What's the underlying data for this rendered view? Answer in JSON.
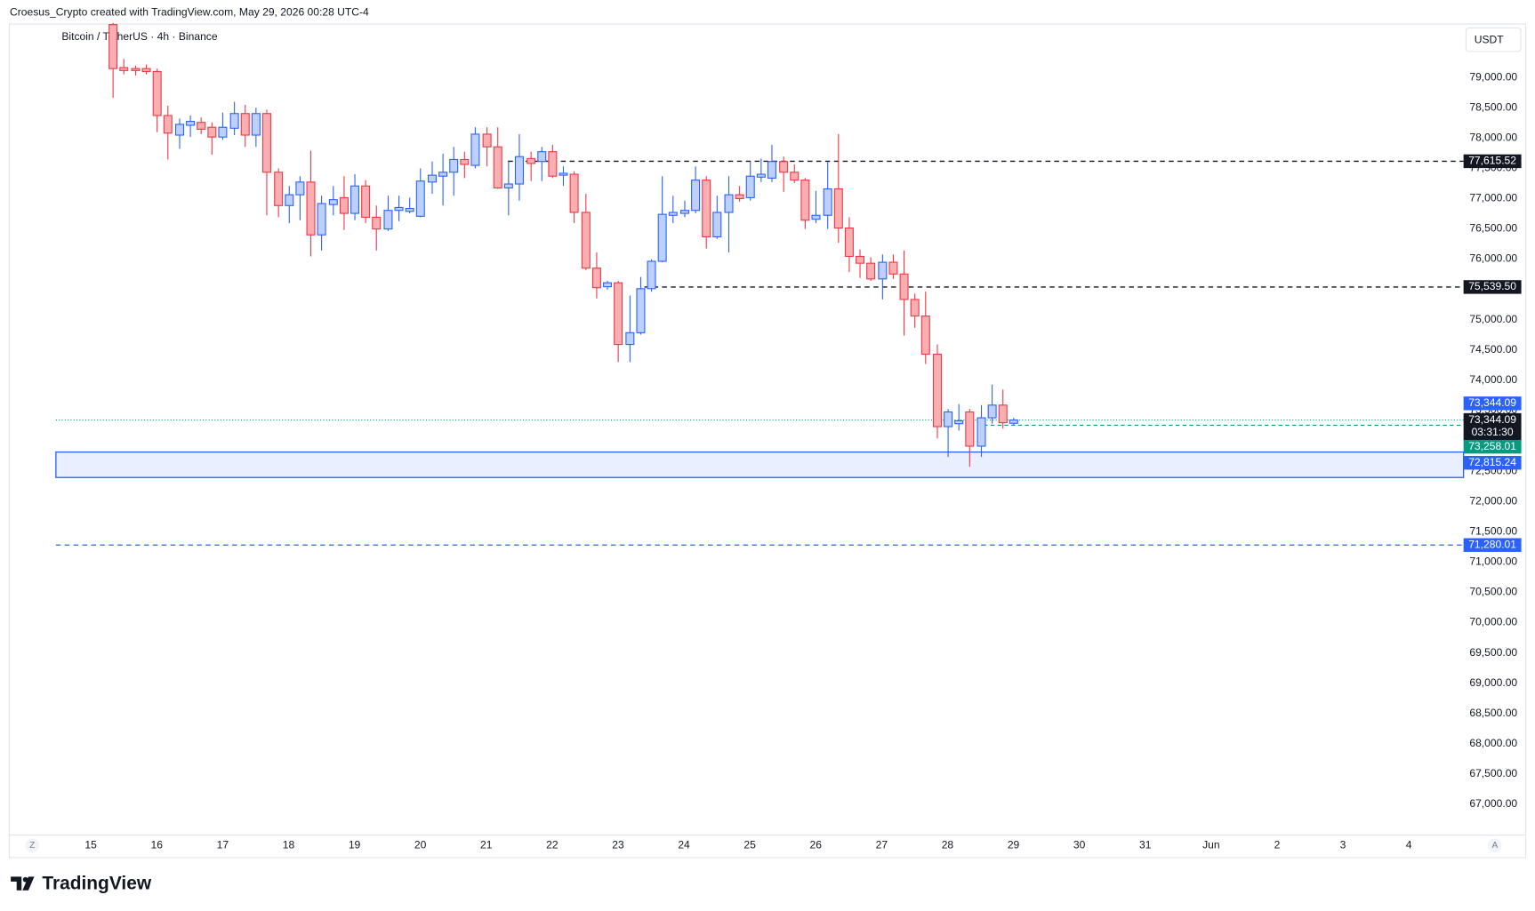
{
  "header": "Croesus_Crypto created with TradingView.com, May 29, 2026 00:28 UTC-4",
  "logo": "TradingView",
  "chart_data": {
    "type": "candlestick",
    "title": "Bitcoin / TetherUS · 4h · Binance",
    "currency": "USDT",
    "buttons": [
      "Z",
      "A"
    ],
    "up_color": "#2962ff",
    "down_color": "#f23645",
    "x": [
      15.333,
      15.5,
      15.667,
      15.833,
      16,
      16.167,
      16.333,
      16.5,
      16.667,
      16.833,
      17,
      17.167,
      17.333,
      17.5,
      17.667,
      17.833,
      18,
      18.167,
      18.333,
      18.5,
      18.667,
      18.833,
      19,
      19.167,
      19.333,
      19.5,
      19.667,
      19.833,
      20,
      20.167,
      20.333,
      20.5,
      20.667,
      20.833,
      21,
      21.167,
      21.333,
      21.5,
      21.667,
      21.833,
      22,
      22.167,
      22.333,
      22.5,
      22.667,
      22.833,
      23,
      23.167,
      23.333,
      23.5,
      23.667,
      23.833,
      24,
      24.167,
      24.333,
      24.5,
      24.667,
      24.833,
      25,
      25.167,
      25.333,
      25.5,
      25.667,
      25.833,
      26,
      26.167,
      26.333,
      26.5,
      26.667,
      26.833,
      27,
      27.167,
      27.333,
      27.5,
      27.667,
      27.833,
      28,
      28.167,
      28.333,
      28.5,
      28.667,
      28.833,
      29
    ],
    "open": [
      79872,
      79162,
      79145,
      79145,
      79097,
      78370,
      78047,
      78209,
      78257,
      78176,
      78015,
      78160,
      78403,
      78047,
      78403,
      77434,
      76884,
      77062,
      77272,
      76400,
      76901,
      77014,
      76755,
      77207,
      76691,
      76497,
      76804,
      76788,
      76707,
      77272,
      77369,
      77434,
      77644,
      77547,
      78063,
      77853,
      77175,
      77240,
      77660,
      77611,
      77773,
      77385,
      77401,
      76771,
      75851,
      75544,
      75609,
      74591,
      74785,
      75512,
      75964,
      76723,
      76755,
      76804,
      77304,
      76368,
      76771,
      77062,
      77014,
      77353,
      77337,
      77611,
      77434,
      77304,
      76658,
      76723,
      77159,
      76513,
      76045,
      75932,
      75673,
      75948,
      75754,
      75334,
      75060,
      74430,
      73235,
      73283,
      73477,
      72912,
      73380,
      73590,
      73290
    ],
    "high": [
      79900,
      79307,
      79194,
      79210,
      79145,
      78532,
      78322,
      78370,
      78338,
      78257,
      78419,
      78596,
      78548,
      78499,
      78467,
      77498,
      77207,
      77369,
      77789,
      77046,
      77207,
      77369,
      77401,
      77304,
      76884,
      77046,
      77046,
      77014,
      77498,
      77611,
      77740,
      77853,
      77773,
      78176,
      78176,
      78176,
      77611,
      78063,
      77773,
      77853,
      77886,
      77530,
      77450,
      77078,
      76109,
      75641,
      75641,
      75399,
      75706,
      75996,
      77369,
      77046,
      76965,
      77530,
      77369,
      77046,
      77369,
      77207,
      77611,
      77660,
      77886,
      77692,
      77563,
      77337,
      77127,
      77611,
      78063,
      76691,
      76158,
      76029,
      76077,
      76077,
      76142,
      75431,
      75463,
      74591,
      73525,
      73606,
      73525,
      73590,
      73929,
      73848,
      73380
    ],
    "low": [
      78661,
      79049,
      79032,
      79049,
      78096,
      77644,
      77821,
      78015,
      78063,
      77724,
      77967,
      78047,
      77853,
      77853,
      76723,
      76691,
      76594,
      76642,
      76045,
      76142,
      76723,
      76481,
      76642,
      76594,
      76142,
      76465,
      76626,
      76755,
      76691,
      77078,
      76884,
      77046,
      77337,
      77498,
      77530,
      77159,
      76723,
      76965,
      77288,
      77288,
      77337,
      77207,
      76594,
      75819,
      75350,
      75496,
      74300,
      74300,
      74753,
      75463,
      75948,
      76594,
      76691,
      76755,
      76174,
      76335,
      76109,
      76949,
      76965,
      77272,
      77272,
      77111,
      77256,
      76497,
      76594,
      76497,
      76271,
      75786,
      75689,
      75641,
      75334,
      75673,
      74737,
      74866,
      74268,
      73041,
      72734,
      73170,
      72572,
      72734,
      73283,
      73202,
      73250
    ],
    "close": [
      79145,
      79113,
      79113,
      79097,
      78370,
      78080,
      78225,
      78273,
      78144,
      78015,
      78176,
      78403,
      78047,
      78403,
      77434,
      76884,
      77062,
      77272,
      76400,
      76917,
      76981,
      76755,
      77207,
      76691,
      76497,
      76804,
      76852,
      76836,
      77288,
      77385,
      77434,
      77644,
      77563,
      78063,
      77853,
      77175,
      77240,
      77692,
      77579,
      77773,
      77369,
      77417,
      76771,
      75851,
      75528,
      75609,
      74591,
      74785,
      75512,
      75964,
      76739,
      76771,
      76804,
      77304,
      76368,
      76771,
      77062,
      76998,
      77369,
      77401,
      77611,
      77434,
      77304,
      76642,
      76723,
      77159,
      76513,
      76045,
      75932,
      75673,
      75948,
      75754,
      75334,
      75060,
      74430,
      73235,
      73477,
      73331,
      72912,
      73380,
      73590,
      73299,
      73344.09
    ],
    "xlim": [
      13.77,
      35.83
    ],
    "xticks": [
      15,
      16,
      17,
      18,
      19,
      20,
      21,
      22,
      23,
      24,
      25,
      26,
      27,
      28,
      29,
      30,
      31,
      {
        "value": 32,
        "label": "Jun"
      },
      {
        "value": 33,
        "label": "2"
      },
      {
        "value": 34,
        "label": "3"
      },
      {
        "value": 35,
        "label": "4"
      }
    ],
    "ylim": [
      66500,
      79872
    ],
    "yticks": [
      {
        "value": 67000,
        "label": "67,000.00"
      },
      {
        "value": 67500,
        "label": "67,500.00"
      },
      {
        "value": 68000,
        "label": "68,000.00"
      },
      {
        "value": 68500,
        "label": "68,500.00"
      },
      {
        "value": 69000,
        "label": "69,000.00"
      },
      {
        "value": 69500,
        "label": "69,500.00"
      },
      {
        "value": 70000,
        "label": "70,000.00"
      },
      {
        "value": 70500,
        "label": "70,500.00"
      },
      {
        "value": 71000,
        "label": "71,000.00"
      },
      {
        "value": 71500,
        "label": "71,500.00"
      },
      {
        "value": 72000,
        "label": "72,000.00"
      },
      {
        "value": 72500,
        "label": "72,500.00"
      },
      {
        "value": 73000,
        "label": "73,000.00"
      },
      {
        "value": 73500,
        "label": "73,500.00"
      },
      {
        "value": 74000,
        "label": "74,000.00"
      },
      {
        "value": 74500,
        "label": "74,500.00"
      },
      {
        "value": 75000,
        "label": "75,000.00"
      },
      {
        "value": 75500,
        "label": "75,500.00"
      },
      {
        "value": 76000,
        "label": "76,000.00"
      },
      {
        "value": 76500,
        "label": "76,500.00"
      },
      {
        "value": 77000,
        "label": "77,000.00"
      },
      {
        "value": 77500,
        "label": "77,500.00"
      },
      {
        "value": 78000,
        "label": "78,000.00"
      },
      {
        "value": 78500,
        "label": "78,500.00"
      },
      {
        "value": 79000,
        "label": "79,000.00"
      }
    ],
    "levels": [
      {
        "value": 77615.52,
        "value_label": "77,615.52",
        "color": "#131722",
        "x_start": 21.33
      },
      {
        "value": 75539.5,
        "value_label": "75,539.50",
        "color": "#131722",
        "x_start": 23.4
      },
      {
        "value": 71280.01,
        "value_label": "71,280.01",
        "color": "#2962ff",
        "x_start": 14.47
      }
    ],
    "zone": {
      "top": 72815.24,
      "top_label": "72,815.24",
      "bottom": 72395,
      "color": "#2962ff",
      "x_start": 14.47
    },
    "price": {
      "value": 73344.09,
      "value_label": "73,344.09",
      "countdown": "03:31:30",
      "color": "#2962ff",
      "x_start": 14.47
    },
    "previous": {
      "value": 73258.01,
      "value_label": "73,258.01",
      "color": "#089981",
      "x_start": 28.55
    }
  }
}
